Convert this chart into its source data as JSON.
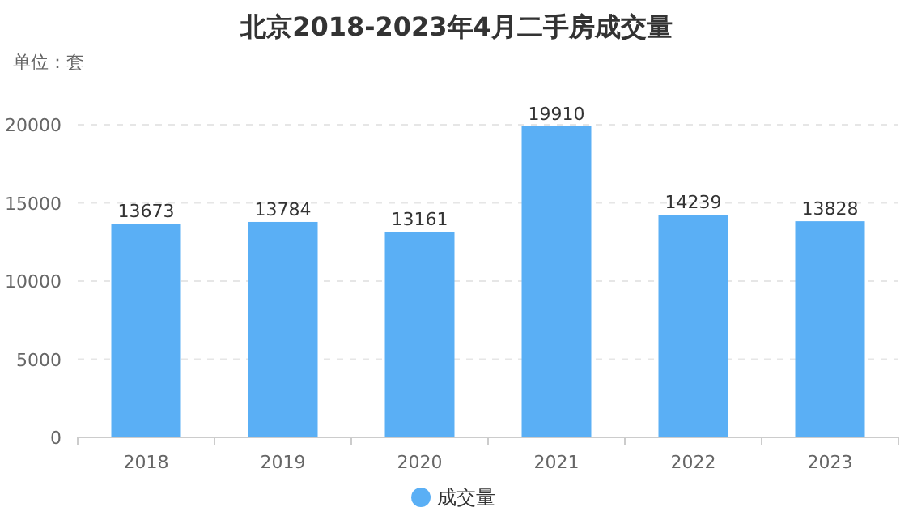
{
  "chart_data": {
    "type": "bar",
    "title": "北京2018-2023年4月二手房成交量",
    "annotations": [
      "单位：套"
    ],
    "categories": [
      "2018",
      "2019",
      "2020",
      "2021",
      "2022",
      "2023"
    ],
    "series": [
      {
        "name": "成交量",
        "color": "#5aaff5",
        "values": [
          13673,
          13784,
          13161,
          19910,
          14239,
          13828
        ]
      }
    ],
    "ylim": [
      0,
      20000
    ],
    "yticks": [
      0,
      5000,
      10000,
      15000,
      20000
    ],
    "grid": "y",
    "legend": "bottom",
    "data_labels": true
  }
}
